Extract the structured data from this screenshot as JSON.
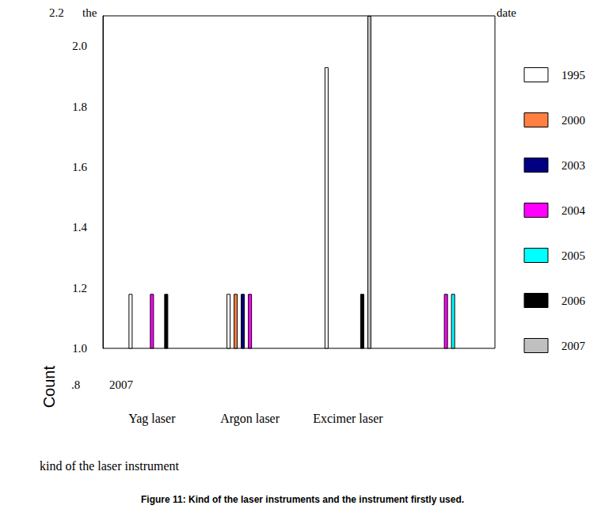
{
  "chart_data": {
    "type": "bar",
    "title": "Figure 11: Kind of the laser instruments and the instrument firstly used.",
    "x_label": "kind of the laser instrument",
    "y_label": "Count",
    "annotations": [
      "2.2",
      "the",
      "date",
      ".8",
      "2007"
    ],
    "categories": [
      "Yag laser",
      "Argon laser",
      "Excimer laser",
      null
    ],
    "series": [
      {
        "name": "1995",
        "color": "#ffffff",
        "values": [
          1.18,
          1.18,
          1.93,
          null
        ]
      },
      {
        "name": "2000",
        "color": "#ff8040",
        "values": [
          null,
          1.18,
          null,
          null
        ]
      },
      {
        "name": "2003",
        "color": "#000080",
        "values": [
          null,
          1.18,
          null,
          null
        ]
      },
      {
        "name": "2004",
        "color": "#ff00ff",
        "values": [
          1.18,
          1.18,
          null,
          1.18
        ]
      },
      {
        "name": "2005",
        "color": "#00ffff",
        "values": [
          null,
          null,
          null,
          1.18
        ]
      },
      {
        "name": "2006",
        "color": "#000000",
        "values": [
          1.18,
          null,
          1.18,
          null
        ]
      },
      {
        "name": "2007",
        "color": "#c0c0c0",
        "values": [
          null,
          null,
          2.1,
          null
        ]
      }
    ],
    "ylim": [
      1.0,
      2.1
    ],
    "yticks": [
      {
        "value": 1.0,
        "label": "1.0"
      },
      {
        "value": 1.2,
        "label": "1.2"
      },
      {
        "value": 1.4,
        "label": "1.4"
      },
      {
        "value": 1.6,
        "label": "1.6"
      },
      {
        "value": 1.8,
        "label": "1.8"
      },
      {
        "value": 2.0,
        "label": "2.0"
      }
    ],
    "grid": false,
    "legend": "right"
  }
}
